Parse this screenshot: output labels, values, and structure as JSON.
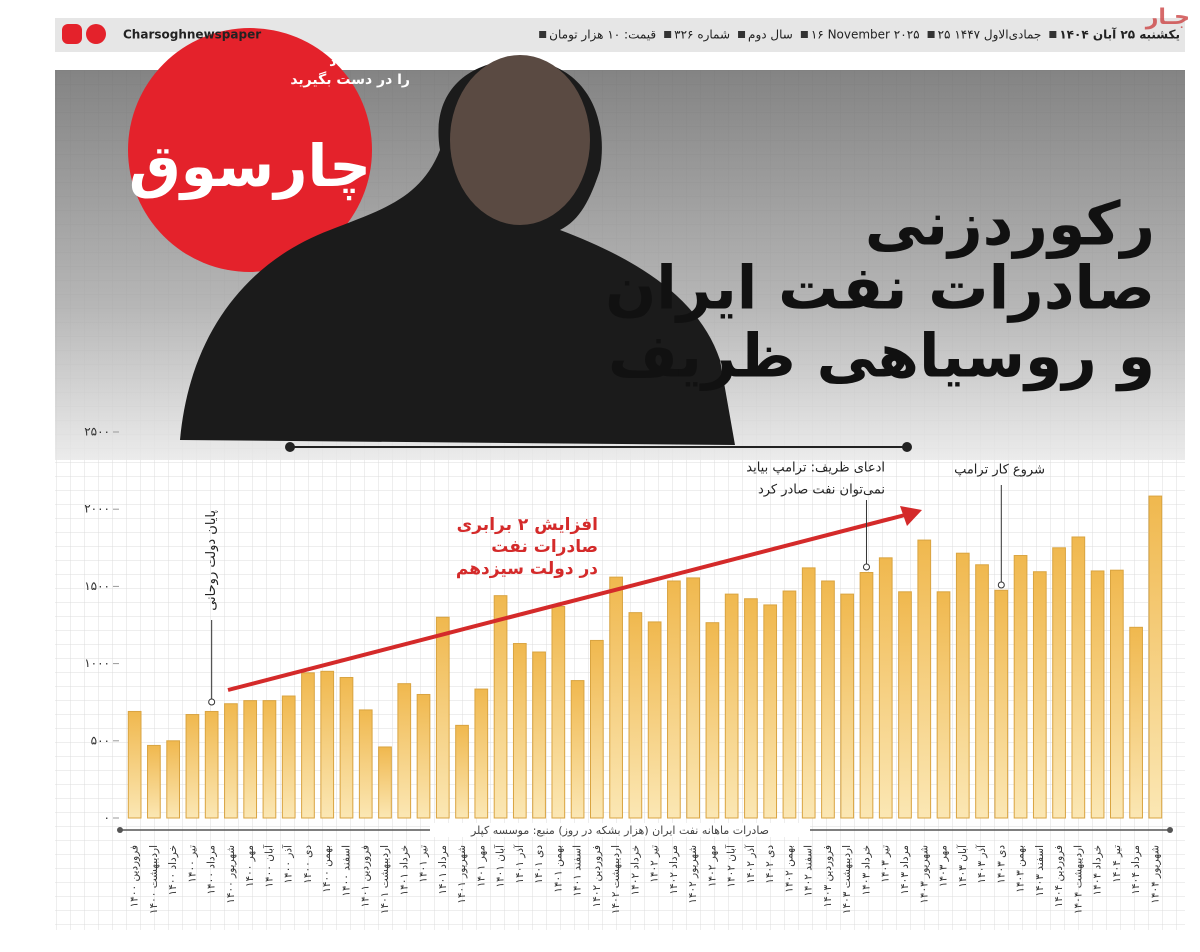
{
  "header": {
    "items": [
      "یکشنبه ۲۵ آبان ۱۴۰۴",
      "۲۵ جمادی‌الاول ۱۴۴۷",
      "۱۶ November ۲۰۲۵",
      "سال دوم",
      "شماره ۳۲۶",
      "قیمت: ۱۰ هزار تومان"
    ],
    "social": "Charsoghnewspaper",
    "watermark": "جـار"
  },
  "logo": {
    "name": "چارسوق",
    "tagline": [
      "نبض اقتصاد",
      "را در دست بگیرید"
    ]
  },
  "headline": {
    "lines": [
      "رکوردزنی",
      "صادرات نفت ایران",
      "و روسیاهی ظریف"
    ]
  },
  "chart_data": {
    "type": "bar",
    "color": "#f3c96e",
    "caption": "صادرات ماهانه نفت ایران (هزار بشکه در روز) منبع: موسسه کپلر",
    "categories": [
      "فروردین ۱۴۰۰",
      "اردیبهشت ۱۴۰۰",
      "خرداد ۱۴۰۰",
      "تیر ۱۴۰۰",
      "مرداد ۱۴۰۰",
      "شهریور ۱۴۰۰",
      "مهر ۱۴۰۰",
      "آبان ۱۴۰۰",
      "آذر ۱۴۰۰",
      "دی ۱۴۰۰",
      "بهمن ۱۴۰۰",
      "اسفند ۱۴۰۰",
      "فروردین ۱۴۰۱",
      "اردیبهشت ۱۴۰۱",
      "خرداد ۱۴۰۱",
      "تیر ۱۴۰۱",
      "مرداد ۱۴۰۱",
      "شهریور ۱۴۰۱",
      "مهر ۱۴۰۱",
      "آبان ۱۴۰۱",
      "آذر ۱۴۰۱",
      "دی ۱۴۰۱",
      "بهمن ۱۴۰۱",
      "اسفند ۱۴۰۱",
      "فروردین ۱۴۰۲",
      "اردیبهشت ۱۴۰۲",
      "خرداد ۱۴۰۲",
      "تیر ۱۴۰۲",
      "مرداد ۱۴۰۲",
      "شهریور ۱۴۰۲",
      "مهر ۱۴۰۲",
      "آبان ۱۴۰۲",
      "آذر ۱۴۰۲",
      "دی ۱۴۰۲",
      "بهمن ۱۴۰۲",
      "اسفند ۱۴۰۲",
      "فروردین ۱۴۰۳",
      "اردیبهشت ۱۴۰۳",
      "خرداد ۱۴۰۳",
      "تیر ۱۴۰۳",
      "مرداد ۱۴۰۳",
      "شهریور ۱۴۰۳",
      "مهر ۱۴۰۳",
      "آبان ۱۴۰۳",
      "آذر ۱۴۰۳",
      "دی ۱۴۰۳",
      "بهمن ۱۴۰۳",
      "اسفند ۱۴۰۳",
      "فروردین ۱۴۰۴",
      "اردیبهشت ۱۴۰۴",
      "خرداد ۱۴۰۴",
      "تیر ۱۴۰۴",
      "مرداد ۱۴۰۴",
      "شهریور ۱۴۰۴"
    ],
    "values": [
      690,
      470,
      500,
      670,
      690,
      740,
      760,
      760,
      790,
      940,
      950,
      910,
      700,
      460,
      870,
      800,
      1300,
      600,
      835,
      1440,
      1130,
      1075,
      1370,
      890,
      1150,
      1560,
      1330,
      1270,
      1535,
      1555,
      1265,
      1450,
      1420,
      1380,
      1470,
      1620,
      1535,
      1450,
      1590,
      1685,
      1465,
      1800,
      1465,
      1715,
      1640,
      1475,
      1700,
      1595,
      1750,
      1820,
      1600,
      1605,
      1235,
      2085
    ],
    "ylim": [
      0,
      2500
    ],
    "yticks": [
      {
        "value": 0,
        "label": "۰"
      },
      {
        "value": 500,
        "label": "۵۰۰"
      },
      {
        "value": 1000,
        "label": "۱۰۰۰"
      },
      {
        "value": 1500,
        "label": "۱۵۰۰"
      },
      {
        "value": 2000,
        "label": "۲۰۰۰"
      },
      {
        "value": 2500,
        "label": "۲۵۰۰"
      }
    ],
    "annotations": {
      "rouhani": "پایان دولت روحانی",
      "zarif": [
        "ادعای ظریف: ترامپ بیاید",
        "نمی‌توان نفت صادر کرد"
      ],
      "trump": "شروع کار ترامپ",
      "trend": [
        "افزایش ۲ برابری",
        "صادرات نفت",
        "در دولت سیزدهم"
      ]
    }
  }
}
